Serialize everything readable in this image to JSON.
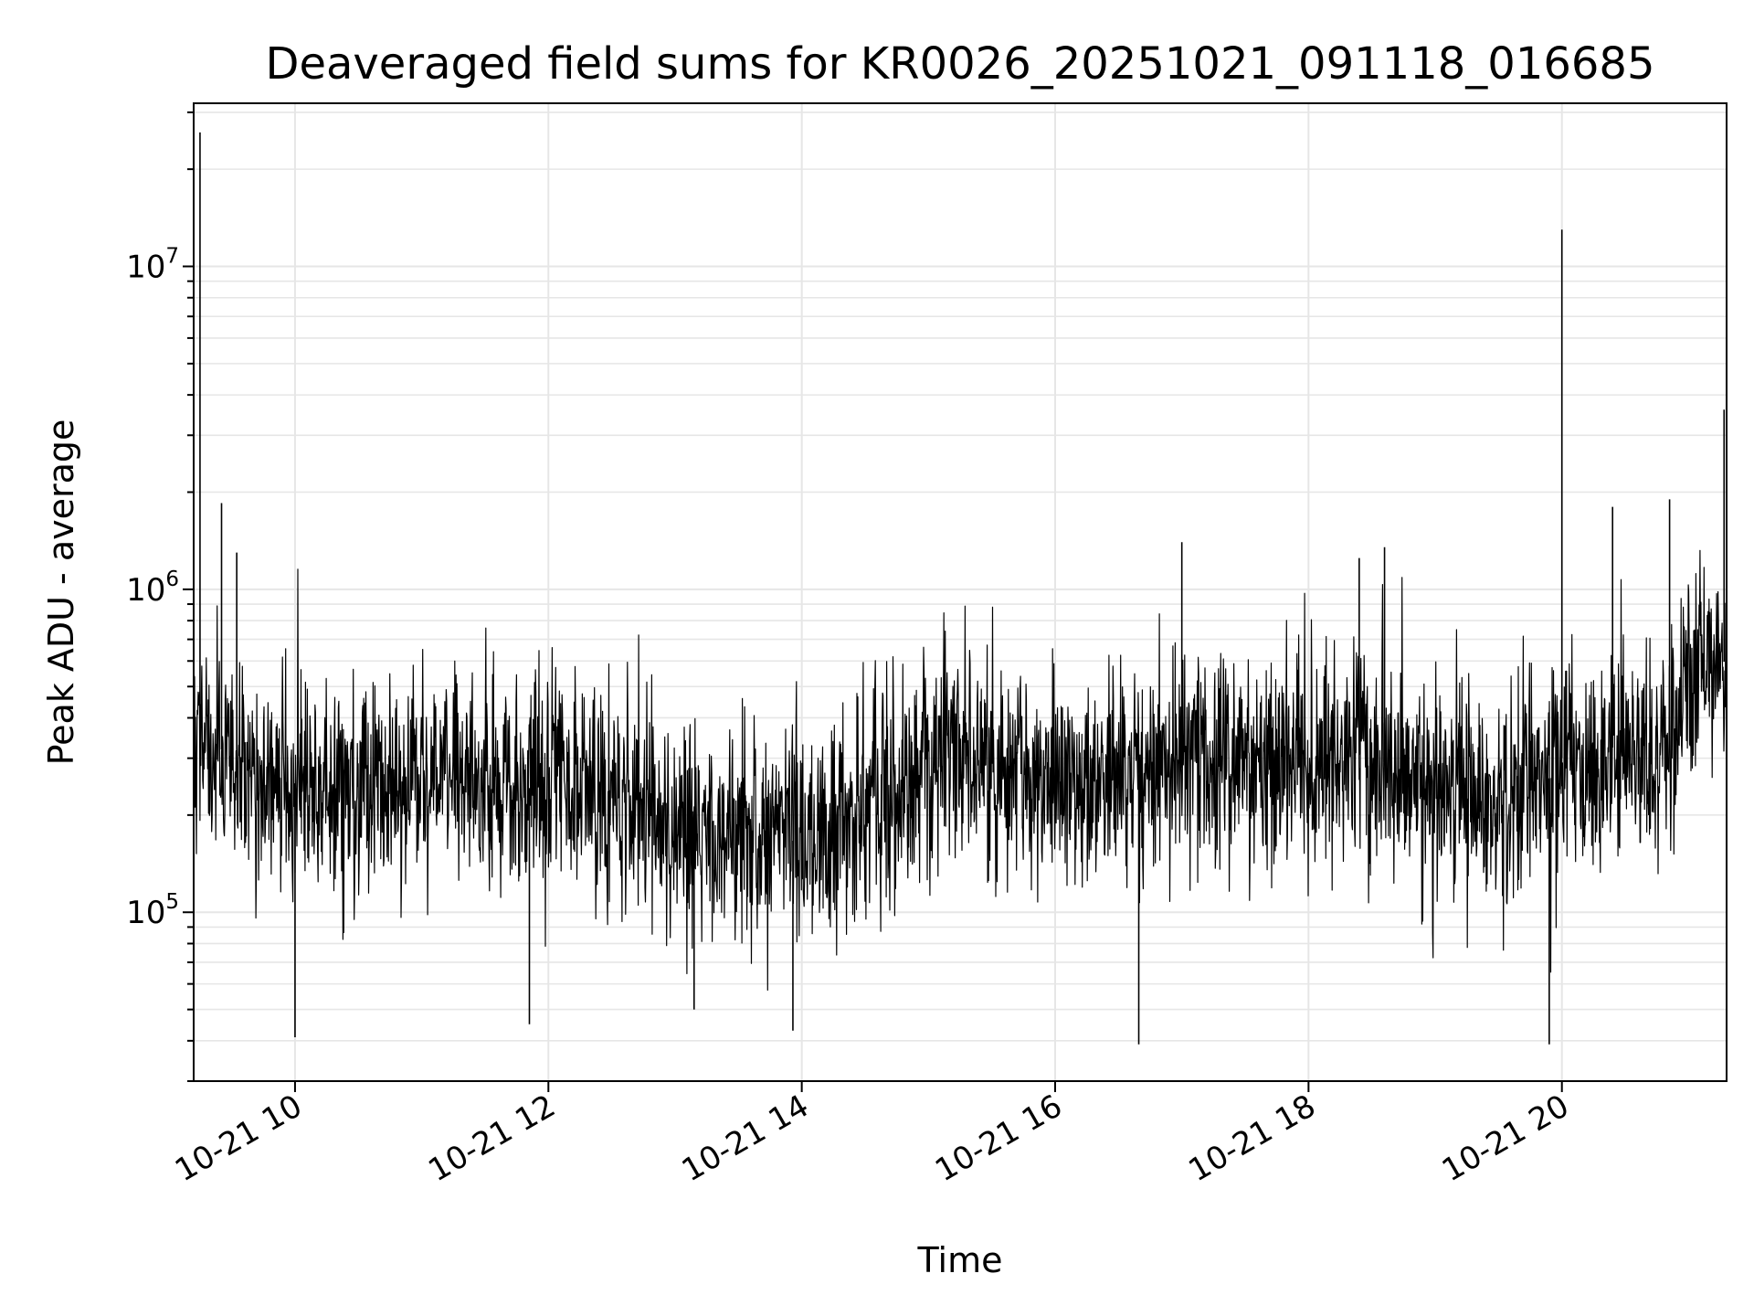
{
  "chart_data": {
    "type": "line",
    "title": "Deaveraged field sums for KR0026_20251021_091118_016685",
    "xlabel": "Time",
    "ylabel": "Peak ADU - average",
    "yscale": "log",
    "xlim": [
      9.2,
      21.3
    ],
    "ylim": [
      30000,
      32000000
    ],
    "grid": true,
    "legend": "none",
    "line_color": "#000000",
    "grid_color": "#e6e6e6",
    "x_ticks": [
      {
        "value": 10,
        "label": "10-21 10"
      },
      {
        "value": 12,
        "label": "10-21 12"
      },
      {
        "value": 14,
        "label": "10-21 14"
      },
      {
        "value": 16,
        "label": "10-21 16"
      },
      {
        "value": 18,
        "label": "10-21 18"
      },
      {
        "value": 20,
        "label": "10-21 20"
      }
    ],
    "y_ticks": [
      {
        "value": 100000,
        "base": "10",
        "exp": "5"
      },
      {
        "value": 1000000,
        "base": "10",
        "exp": "6"
      },
      {
        "value": 10000000,
        "base": "10",
        "exp": "7"
      }
    ],
    "series": [
      {
        "x": [
          9.2,
          9.5,
          9.8,
          10.0,
          10.5,
          11.0,
          11.5,
          11.8,
          12.0,
          12.5,
          13.0,
          13.5,
          13.9,
          14.2,
          14.5,
          15.0,
          15.3,
          15.6,
          16.0,
          16.5,
          17.0,
          17.5,
          18.0,
          18.5,
          18.8,
          19.0,
          19.5,
          19.9,
          20.0,
          20.5,
          20.9,
          21.0,
          21.3
        ],
        "y": [
          380000,
          300000,
          260000,
          240000,
          250000,
          260000,
          250000,
          240000,
          250000,
          230000,
          190000,
          170000,
          165000,
          180000,
          200000,
          280000,
          310000,
          280000,
          240000,
          260000,
          280000,
          300000,
          300000,
          310000,
          260000,
          230000,
          240000,
          260000,
          300000,
          330000,
          320000,
          550000,
          600000
        ]
      }
    ],
    "spikes": [
      {
        "x": 9.25,
        "y": 26000000
      },
      {
        "x": 9.42,
        "y": 1850000
      },
      {
        "x": 9.54,
        "y": 1300000
      },
      {
        "x": 10.0,
        "y": 41000
      },
      {
        "x": 11.85,
        "y": 45000
      },
      {
        "x": 13.15,
        "y": 50000
      },
      {
        "x": 13.93,
        "y": 43000
      },
      {
        "x": 16.66,
        "y": 39000
      },
      {
        "x": 17.0,
        "y": 1400000
      },
      {
        "x": 18.4,
        "y": 1250000
      },
      {
        "x": 18.6,
        "y": 1350000
      },
      {
        "x": 19.9,
        "y": 39000
      },
      {
        "x": 20.0,
        "y": 13000000
      },
      {
        "x": 20.4,
        "y": 1800000
      },
      {
        "x": 20.85,
        "y": 1900000
      },
      {
        "x": 21.28,
        "y": 3600000
      }
    ]
  }
}
